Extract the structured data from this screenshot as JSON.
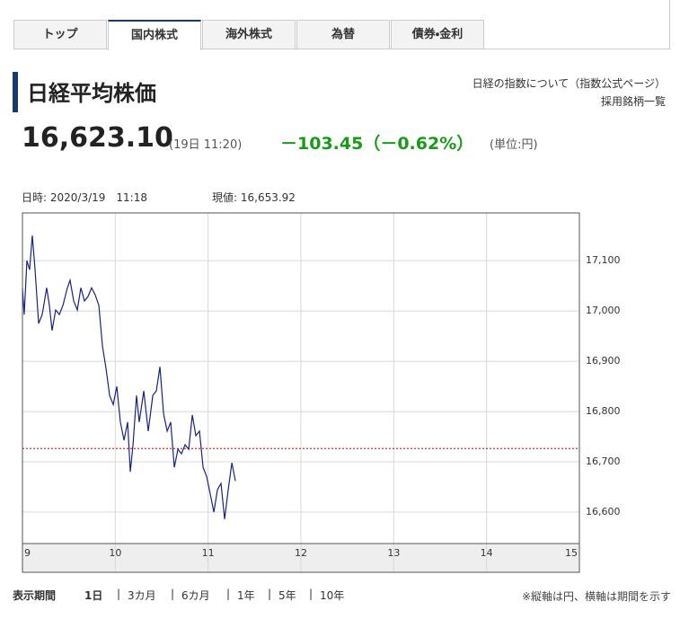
{
  "tabs": [
    "トップ",
    "国内株式",
    "海外株式",
    "為替",
    "債券・金利"
  ],
  "header": {
    "title": "日経平均株価",
    "links": [
      "日経の指数について（指数公式ページ）",
      "採用銘柄一覧"
    ]
  },
  "quote": {
    "price": "16,623.10",
    "time": "(19日 11:20)",
    "change": "－103.45（－0.62%）",
    "unit": "(単位:円)"
  },
  "chart_info": {
    "datetime": "日時: 2020/3/19　11:18",
    "current": "現値: 16,653.92"
  },
  "chart_data": {
    "type": "line",
    "x": [
      9.0,
      9.019,
      9.048,
      9.077,
      9.106,
      9.136,
      9.174,
      9.213,
      9.261,
      9.29,
      9.319,
      9.358,
      9.397,
      9.436,
      9.484,
      9.513,
      9.552,
      9.591,
      9.629,
      9.668,
      9.707,
      9.745,
      9.784,
      9.823,
      9.862,
      9.9,
      9.939,
      9.978,
      10.016,
      10.055,
      10.094,
      10.133,
      10.162,
      10.191,
      10.229,
      10.258,
      10.307,
      10.355,
      10.404,
      10.442,
      10.481,
      10.52,
      10.559,
      10.597,
      10.636,
      10.675,
      10.713,
      10.752,
      10.791,
      10.83,
      10.868,
      10.907,
      10.946,
      10.984,
      11.023,
      11.062,
      11.101,
      11.139,
      11.178,
      11.217,
      11.256,
      11.294
    ],
    "series": [
      {
        "color": "#1a237e",
        "values": [
          17046,
          16993,
          17100,
          17082,
          17150,
          17082,
          16975,
          16993,
          17046,
          17011,
          16961,
          17002,
          16993,
          17011,
          17046,
          17061,
          17020,
          17002,
          17046,
          17020,
          17029,
          17046,
          17032,
          17011,
          16930,
          16886,
          16832,
          16814,
          16850,
          16779,
          16743,
          16779,
          16680,
          16734,
          16832,
          16779,
          16841,
          16761,
          16832,
          16841,
          16889,
          16796,
          16761,
          16779,
          16689,
          16725,
          16716,
          16734,
          16725,
          16793,
          16752,
          16761,
          16689,
          16671,
          16636,
          16600,
          16645,
          16657,
          16586,
          16645,
          16698,
          16662
        ]
      }
    ],
    "reference_line": 16726.55,
    "reference_color": "#cc0000",
    "xlim": [
      9,
      15
    ],
    "xticks": [
      9,
      10,
      11,
      12,
      13,
      14,
      15
    ],
    "ylim": [
      16537.5,
      17195
    ],
    "yticks": [
      {
        "value": 16600,
        "label": "16,600"
      },
      {
        "value": 16700,
        "label": "16,700"
      },
      {
        "value": 16800,
        "label": "16,800"
      },
      {
        "value": 16900,
        "label": "16,900"
      },
      {
        "value": 17000,
        "label": "17,000"
      },
      {
        "value": 17100,
        "label": "17,100"
      }
    ],
    "grid": true
  },
  "footer": {
    "label": "表示期間",
    "periods": [
      "1日",
      "3カ月",
      "6カ月",
      "1年",
      "5年",
      "10年"
    ],
    "note": "※縦軸は円、横軸は期間を示す"
  }
}
